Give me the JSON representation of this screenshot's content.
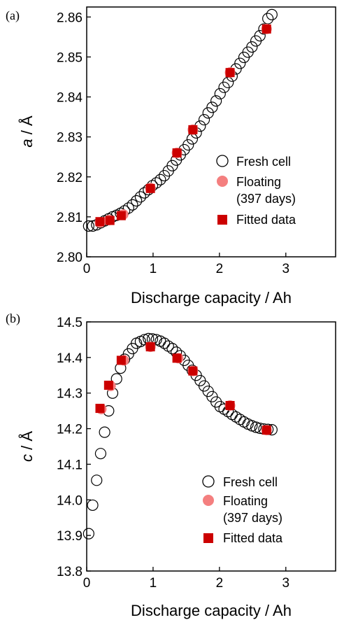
{
  "colors": {
    "fresh_edge": "#000000",
    "floating_fill": "#f47f7f",
    "fitted_fill": "#cc0000"
  },
  "legend": {
    "fresh": "Fresh cell",
    "floating_line1": "Floating",
    "floating_line2": "(397 days)",
    "fitted": "Fitted data"
  },
  "chart_data": [
    {
      "type": "scatter",
      "panel_label": "(a)",
      "xlabel": "Discharge capacity / Ah",
      "ylabel_italic": "a",
      "ylabel_rest": " / Å",
      "xlim": [
        0,
        3.75
      ],
      "ylim": [
        2.8,
        2.8625
      ],
      "xticks": [
        0,
        1,
        2,
        3
      ],
      "yticks": [
        2.8,
        2.81,
        2.82,
        2.83,
        2.84,
        2.85,
        2.86
      ],
      "ytick_labels": [
        "2.80",
        "2.81",
        "2.82",
        "2.83",
        "2.84",
        "2.85",
        "2.86"
      ],
      "legend_position": "right-middle",
      "series": [
        {
          "name": "Fresh cell",
          "marker": "open-circle",
          "x": [
            0.03,
            0.09,
            0.15,
            0.21,
            0.27,
            0.33,
            0.39,
            0.45,
            0.51,
            0.57,
            0.63,
            0.69,
            0.75,
            0.81,
            0.87,
            0.93,
            0.99,
            1.05,
            1.11,
            1.17,
            1.23,
            1.29,
            1.35,
            1.41,
            1.47,
            1.53,
            1.59,
            1.65,
            1.71,
            1.77,
            1.83,
            1.89,
            1.95,
            2.01,
            2.07,
            2.13,
            2.19,
            2.25,
            2.31,
            2.37,
            2.43,
            2.49,
            2.55,
            2.61,
            2.67,
            2.73,
            2.79
          ],
          "y": [
            2.8077,
            2.8077,
            2.808,
            2.8085,
            2.809,
            2.8095,
            2.81,
            2.8104,
            2.8109,
            2.8115,
            2.8122,
            2.813,
            2.814,
            2.815,
            2.816,
            2.8168,
            2.8178,
            2.8185,
            2.8193,
            2.8203,
            2.8215,
            2.8228,
            2.8242,
            2.8255,
            2.8268,
            2.828,
            2.8295,
            2.831,
            2.8327,
            2.8343,
            2.836,
            2.8374,
            2.839,
            2.8408,
            2.8424,
            2.8436,
            2.8452,
            2.847,
            2.8484,
            2.8499,
            2.8512,
            2.8525,
            2.854,
            2.8553,
            2.857,
            2.8596,
            2.8606
          ]
        },
        {
          "name": "Floating (397 days)",
          "marker": "filled-circle",
          "x": [
            0.2,
            0.34,
            0.55,
            0.96,
            1.36,
            1.6,
            2.16,
            2.71
          ],
          "y": [
            2.8086,
            2.8092,
            2.8106,
            2.8172,
            2.826,
            2.8318,
            2.8461,
            2.857
          ]
        },
        {
          "name": "Fitted data",
          "marker": "filled-square",
          "x": [
            0.2,
            0.35,
            0.52,
            0.96,
            1.36,
            1.6,
            2.16,
            2.71
          ],
          "y": [
            2.8088,
            2.8091,
            2.8103,
            2.8171,
            2.826,
            2.8318,
            2.8461,
            2.857
          ]
        }
      ]
    },
    {
      "type": "scatter",
      "panel_label": "(b)",
      "xlabel": "Discharge capacity / Ah",
      "ylabel_italic": "c",
      "ylabel_rest": " / Å",
      "xlim": [
        0,
        3.75
      ],
      "ylim": [
        13.8,
        14.5
      ],
      "xticks": [
        0,
        1,
        2,
        3
      ],
      "yticks": [
        13.8,
        13.9,
        14.0,
        14.1,
        14.2,
        14.3,
        14.4,
        14.5
      ],
      "ytick_labels": [
        "13.8",
        "13.9",
        "14.0",
        "14.1",
        "14.2",
        "14.3",
        "14.4",
        "14.5"
      ],
      "legend_position": "bottom-right",
      "series": [
        {
          "name": "Fresh cell",
          "marker": "open-circle",
          "x": [
            0.03,
            0.09,
            0.15,
            0.21,
            0.27,
            0.33,
            0.39,
            0.45,
            0.51,
            0.57,
            0.63,
            0.69,
            0.75,
            0.81,
            0.87,
            0.93,
            0.99,
            1.05,
            1.11,
            1.17,
            1.23,
            1.29,
            1.35,
            1.41,
            1.47,
            1.53,
            1.59,
            1.65,
            1.71,
            1.77,
            1.83,
            1.89,
            1.95,
            2.01,
            2.07,
            2.13,
            2.19,
            2.25,
            2.31,
            2.37,
            2.43,
            2.49,
            2.55,
            2.61,
            2.67,
            2.73,
            2.79
          ],
          "y": [
            13.905,
            13.985,
            14.055,
            14.13,
            14.19,
            14.25,
            14.3,
            14.34,
            14.37,
            14.395,
            14.41,
            14.425,
            14.44,
            14.445,
            14.45,
            14.453,
            14.452,
            14.45,
            14.446,
            14.44,
            14.432,
            14.425,
            14.415,
            14.405,
            14.392,
            14.378,
            14.364,
            14.35,
            14.335,
            14.32,
            14.305,
            14.29,
            14.275,
            14.262,
            14.255,
            14.248,
            14.24,
            14.233,
            14.226,
            14.219,
            14.213,
            14.208,
            14.204,
            14.201,
            14.199,
            14.198,
            14.197
          ]
        },
        {
          "name": "Floating (397 days)",
          "marker": "filled-circle",
          "x": [
            0.22,
            0.36,
            0.56,
            0.96,
            1.38,
            1.6,
            2.16,
            2.71
          ],
          "y": [
            14.255,
            14.32,
            14.392,
            14.43,
            14.398,
            14.362,
            14.265,
            14.196
          ]
        },
        {
          "name": "Fitted data",
          "marker": "filled-square",
          "x": [
            0.2,
            0.33,
            0.52,
            0.96,
            1.36,
            1.6,
            2.16,
            2.71
          ],
          "y": [
            14.257,
            14.322,
            14.392,
            14.43,
            14.398,
            14.362,
            14.265,
            14.196
          ]
        }
      ]
    }
  ]
}
